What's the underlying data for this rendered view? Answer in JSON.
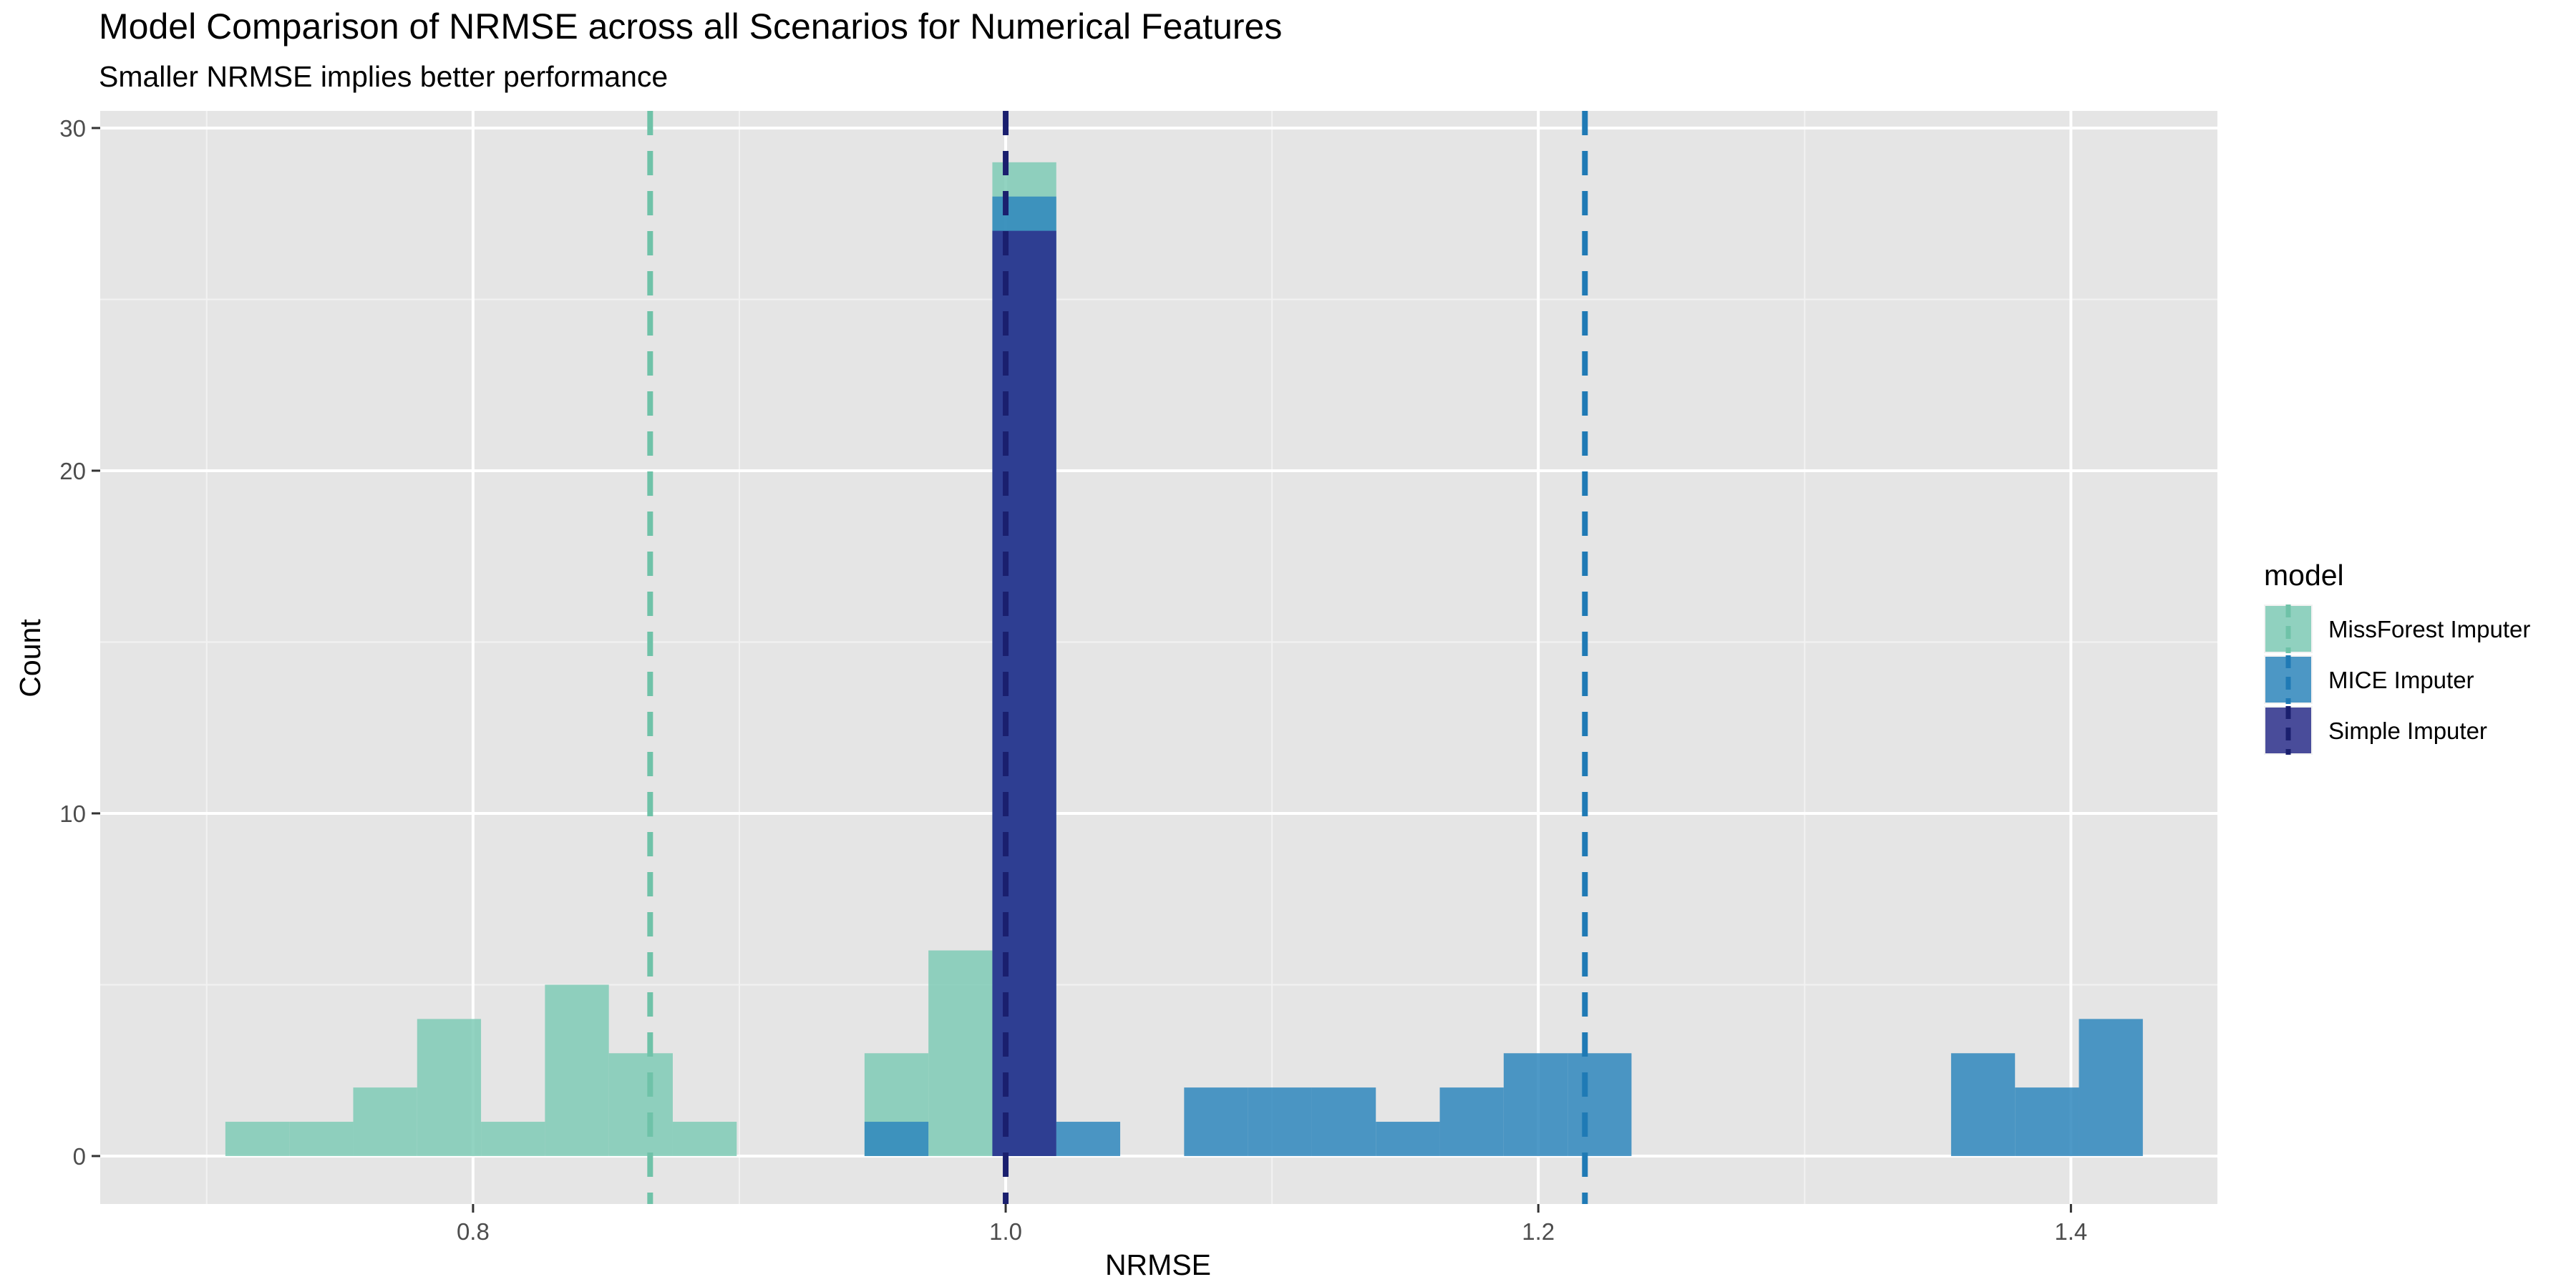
{
  "chart_data": {
    "type": "bar",
    "title": "Model Comparison of NRMSE across all Scenarios for Numerical Features",
    "subtitle": "Smaller NRMSE implies better performance",
    "xlabel": "NRMSE",
    "ylabel": "Count",
    "xlim": [
      0.66,
      1.455
    ],
    "ylim": [
      -1.4,
      30.5
    ],
    "xticks": [
      0.8,
      1.0,
      1.2,
      1.4
    ],
    "xtick_labels": [
      "0.8",
      "1.0",
      "1.2",
      "1.4"
    ],
    "yticks": [
      0,
      10,
      20,
      30
    ],
    "ytick_labels": [
      "0",
      "10",
      "20",
      "30"
    ],
    "grid": true,
    "bin_width": 0.024,
    "legend": {
      "title": "model",
      "placement": "right"
    },
    "series": [
      {
        "name": "MissForest Imputer",
        "color": "#7fcbb6",
        "opacity": 0.85,
        "mean_line": 0.8665,
        "bins": [
          {
            "x": 0.719,
            "count": 1
          },
          {
            "x": 0.743,
            "count": 1
          },
          {
            "x": 0.767,
            "count": 2
          },
          {
            "x": 0.791,
            "count": 4
          },
          {
            "x": 0.815,
            "count": 1
          },
          {
            "x": 0.839,
            "count": 5
          },
          {
            "x": 0.863,
            "count": 3
          },
          {
            "x": 0.887,
            "count": 1
          },
          {
            "x": 0.959,
            "count": 3
          },
          {
            "x": 0.983,
            "count": 6
          },
          {
            "x": 1.007,
            "count": 29
          }
        ]
      },
      {
        "name": "MICE Imputer",
        "color": "#2f87bd",
        "opacity": 0.85,
        "mean_line": 1.2175,
        "bins": [
          {
            "x": 0.959,
            "count": 1
          },
          {
            "x": 1.007,
            "count": 28
          },
          {
            "x": 1.031,
            "count": 1
          },
          {
            "x": 1.079,
            "count": 2
          },
          {
            "x": 1.103,
            "count": 2
          },
          {
            "x": 1.127,
            "count": 2
          },
          {
            "x": 1.151,
            "count": 1
          },
          {
            "x": 1.175,
            "count": 2
          },
          {
            "x": 1.199,
            "count": 3
          },
          {
            "x": 1.223,
            "count": 3
          },
          {
            "x": 1.367,
            "count": 3
          },
          {
            "x": 1.391,
            "count": 2
          },
          {
            "x": 1.415,
            "count": 4
          }
        ]
      },
      {
        "name": "Simple Imputer",
        "color": "#2b2f8b",
        "opacity": 0.85,
        "mean_line": 1.0,
        "bins": [
          {
            "x": 1.007,
            "count": 27
          }
        ]
      }
    ]
  },
  "mean_line_colors": [
    "#6fc2a8",
    "#1f7ab5",
    "#1a1f6e"
  ]
}
